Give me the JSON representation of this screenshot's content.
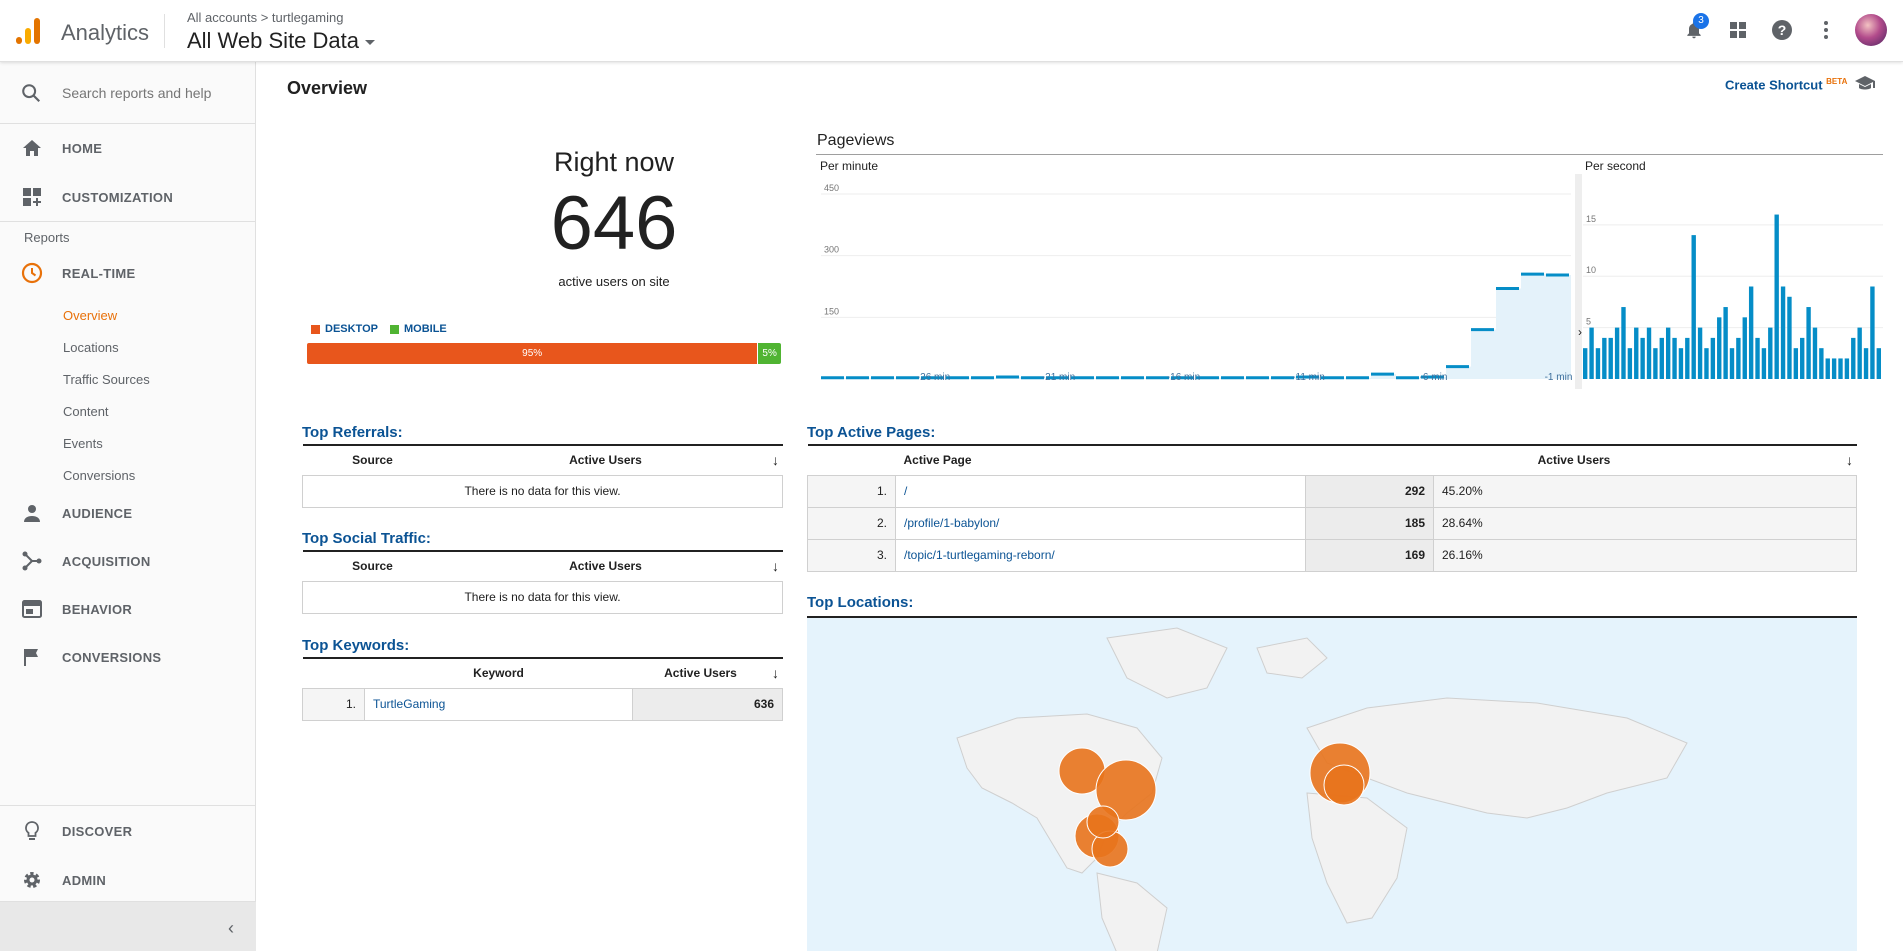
{
  "app": {
    "brand": "Analytics",
    "breadcrumb": "All accounts > turtlegaming",
    "view_name": "All Web Site Data",
    "notifications": "3"
  },
  "sidebar": {
    "search_placeholder": "Search reports and help",
    "home": "HOME",
    "customization": "CUSTOMIZATION",
    "reports_label": "Reports",
    "realtime": "REAL-TIME",
    "realtime_items": [
      "Overview",
      "Locations",
      "Traffic Sources",
      "Content",
      "Events",
      "Conversions"
    ],
    "audience": "AUDIENCE",
    "acquisition": "ACQUISITION",
    "behavior": "BEHAVIOR",
    "conversions": "CONVERSIONS",
    "discover": "DISCOVER",
    "admin": "ADMIN"
  },
  "main": {
    "title": "Overview",
    "create_shortcut": "Create Shortcut",
    "beta": "BETA",
    "right_now": {
      "title": "Right now",
      "count": "646",
      "subtitle": "active users on site",
      "desktop_label": "DESKTOP",
      "mobile_label": "MOBILE",
      "desktop_pct": "95%",
      "mobile_pct": "5%",
      "desktop_color": "#e8561c",
      "mobile_color": "#50b432"
    },
    "pageviews": {
      "title": "Pageviews",
      "per_minute": "Per minute",
      "per_second": "Per second"
    },
    "top_referrals": {
      "title": "Top Referrals:",
      "col_source": "Source",
      "col_users": "Active Users",
      "empty": "There is no data for this view."
    },
    "top_social": {
      "title": "Top Social Traffic:",
      "col_source": "Source",
      "col_users": "Active Users",
      "empty": "There is no data for this view."
    },
    "top_keywords": {
      "title": "Top Keywords:",
      "col_keyword": "Keyword",
      "col_users": "Active Users",
      "rows": [
        {
          "num": "1.",
          "keyword": "TurtleGaming",
          "users": "636"
        }
      ]
    },
    "top_pages": {
      "title": "Top Active Pages:",
      "col_page": "Active Page",
      "col_users": "Active Users",
      "rows": [
        {
          "num": "1.",
          "page": "/",
          "users": "292",
          "pct": "45.20%"
        },
        {
          "num": "2.",
          "page": "/profile/1-babylon/",
          "users": "185",
          "pct": "28.64%"
        },
        {
          "num": "3.",
          "page": "/topic/1-turtlegaming-reborn/",
          "users": "169",
          "pct": "26.16%"
        }
      ]
    },
    "top_locations": {
      "title": "Top Locations:"
    }
  },
  "chart_data": [
    {
      "type": "area",
      "title": "Per minute",
      "y_ticks": [
        "450",
        "300",
        "150"
      ],
      "x_ticks": [
        "-26 min",
        "-21 min",
        "-16 min",
        "-11 min",
        "-6 min",
        "-1 min"
      ],
      "ylim": [
        0,
        450
      ],
      "x": [
        -30,
        -29,
        -28,
        -27,
        -26,
        -25,
        -24,
        -23,
        -22,
        -21,
        -20,
        -19,
        -18,
        -17,
        -16,
        -15,
        -14,
        -13,
        -12,
        -11,
        -10,
        -9,
        -8,
        -7,
        -6,
        -5,
        -4,
        -3,
        -2,
        -1
      ],
      "values": [
        3,
        3,
        3,
        3,
        3,
        3,
        3,
        5,
        3,
        3,
        3,
        3,
        3,
        3,
        3,
        3,
        3,
        3,
        3,
        5,
        3,
        3,
        12,
        3,
        5,
        30,
        120,
        220,
        255,
        253
      ],
      "series_color": "#058dc7"
    },
    {
      "type": "bar",
      "title": "Per second",
      "y_ticks": [
        "15",
        "10",
        "5"
      ],
      "ylim": [
        0,
        18
      ],
      "values": [
        3,
        5,
        3,
        4,
        4,
        5,
        7,
        3,
        5,
        4,
        5,
        3,
        4,
        5,
        4,
        3,
        4,
        14,
        5,
        3,
        4,
        6,
        7,
        3,
        4,
        6,
        9,
        4,
        3,
        5,
        16,
        9,
        8,
        3,
        4,
        7,
        5,
        3,
        2,
        2,
        2,
        2,
        4,
        5,
        3,
        9,
        3
      ],
      "series_color": "#058dc7"
    }
  ]
}
